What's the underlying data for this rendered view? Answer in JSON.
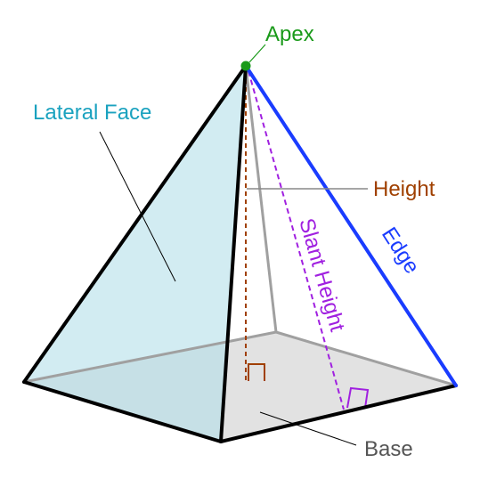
{
  "labels": {
    "apex": "Apex",
    "lateral_face": "Lateral Face",
    "height": "Height",
    "slant_height": "Slant Height",
    "edge": "Edge",
    "base": "Base"
  },
  "colors": {
    "apex": "#1a9a1a",
    "lateral_face": "#1aa2bf",
    "height": "#a04000",
    "slant_height": "#a020e0",
    "edge": "#1a3cff",
    "base": "#555555",
    "face_fill": "#cdeaf2",
    "base_fill": "#e2e2e2",
    "outline": "#000000",
    "hidden_edge": "#a0a0a0"
  }
}
